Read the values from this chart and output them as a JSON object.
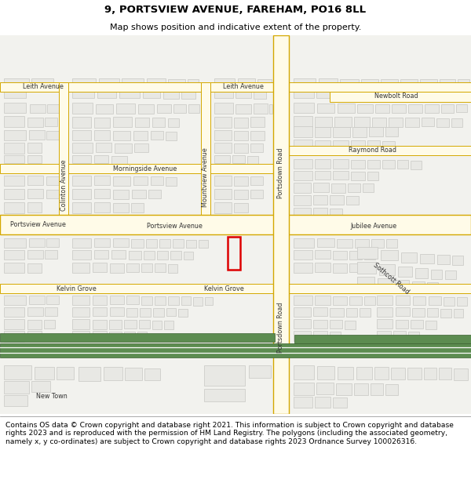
{
  "title_line1": "9, PORTSVIEW AVENUE, FAREHAM, PO16 8LL",
  "title_line2": "Map shows position and indicative extent of the property.",
  "footer_text": "Contains OS data © Crown copyright and database right 2021. This information is subject to Crown copyright and database rights 2023 and is reproduced with the permission of HM Land Registry. The polygons (including the associated geometry, namely x, y co-ordinates) are subject to Crown copyright and database rights 2023 Ordnance Survey 100026316.",
  "map_bg": "#f2f2ee",
  "road_fill": "#fffbe8",
  "road_stroke": "#d4a800",
  "building_fill": "#e8e8e4",
  "building_stroke": "#c8c8c4",
  "green_fill": "#5c8c50",
  "green_stroke": "#3a6030",
  "red_stroke": "#dd0000",
  "white": "#ffffff",
  "title_fontsize": 9.5,
  "subtitle_fontsize": 8.0,
  "footer_fontsize": 6.6,
  "label_fontsize": 5.8,
  "label_color": "#333333"
}
